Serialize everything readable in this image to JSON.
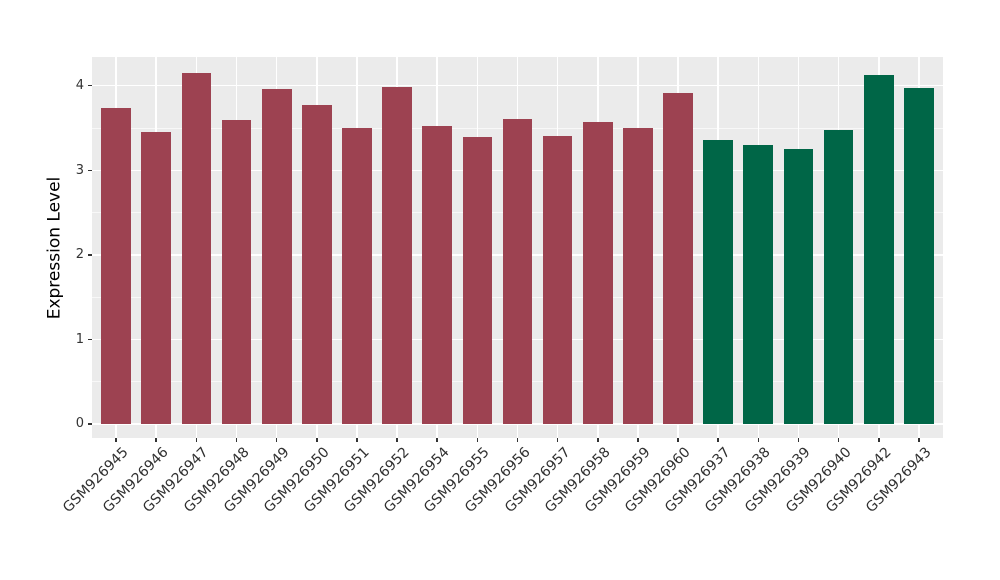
{
  "chart_data": {
    "type": "bar",
    "title": "",
    "xlabel": "",
    "ylabel": "Expression Level",
    "categories": [
      "GSM926945",
      "GSM926946",
      "GSM926947",
      "GSM926948",
      "GSM926949",
      "GSM926950",
      "GSM926951",
      "GSM926952",
      "GSM926954",
      "GSM926955",
      "GSM926956",
      "GSM926957",
      "GSM926958",
      "GSM926959",
      "GSM926960",
      "GSM926937",
      "GSM926938",
      "GSM926939",
      "GSM926940",
      "GSM926942",
      "GSM926943"
    ],
    "values": [
      3.74,
      3.45,
      4.15,
      3.6,
      3.96,
      3.77,
      3.5,
      3.98,
      3.52,
      3.39,
      3.61,
      3.41,
      3.57,
      3.5,
      3.92,
      3.36,
      3.3,
      3.25,
      3.48,
      4.13,
      3.97
    ],
    "groups": [
      "red",
      "red",
      "red",
      "red",
      "red",
      "red",
      "red",
      "red",
      "red",
      "red",
      "red",
      "red",
      "red",
      "red",
      "red",
      "green",
      "green",
      "green",
      "green",
      "green",
      "green"
    ],
    "group_colors": {
      "red": "#9D4251",
      "green": "#006647"
    },
    "yticks": [
      0,
      1,
      2,
      3,
      4
    ],
    "y_minor_ticks": [
      0.5,
      1.5,
      2.5,
      3.5
    ],
    "ylim": [
      0,
      4.15
    ],
    "y_domain_render": [
      -0.166,
      4.34
    ],
    "grid": "on",
    "legend": "none",
    "panel_bg": "#EBEBEB",
    "grid_color": "#FFFFFF",
    "axis_text_color": "#333333",
    "axis_title_color": "#000000"
  }
}
